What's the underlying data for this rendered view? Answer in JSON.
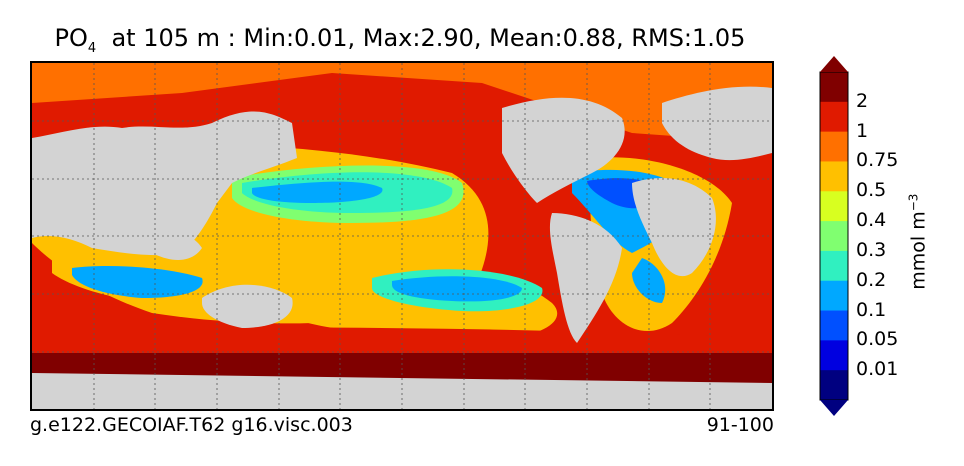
{
  "title": {
    "variable": "PO",
    "subscript": "4",
    "rest": "  at 105 m : Min:0.01, Max:2.90, Mean:0.88, RMS:1.05"
  },
  "footer": {
    "case": "g.e122.GECOIAF.T62 g16.visc.003",
    "years": "91-100"
  },
  "colorbar": {
    "units": "mmol m",
    "units_exp": "−3",
    "labels": [
      "2",
      "1",
      "0.75",
      "0.5",
      "0.4",
      "0.3",
      "0.2",
      "0.1",
      "0.05",
      "0.01"
    ],
    "colors": [
      "#800000",
      "#e01a00",
      "#ff7000",
      "#ffc000",
      "#d8ff20",
      "#80ff70",
      "#30f0c0",
      "#00a8ff",
      "#0050ff",
      "#0000e0",
      "#000080"
    ],
    "land_color": "#d3d3d3"
  }
}
